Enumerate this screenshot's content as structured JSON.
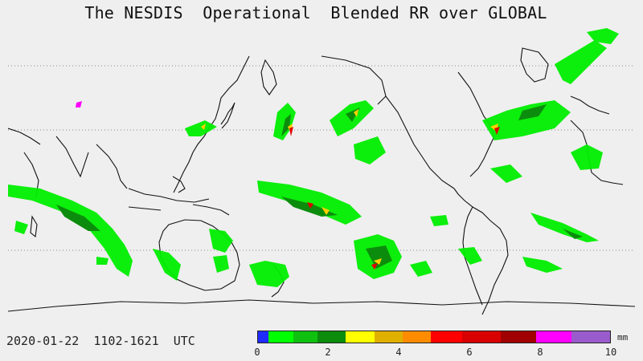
{
  "title": "The NESDIS  Operational  Blended RR over GLOBAL",
  "date_range": "2020-01-22  1102-1621  UTC",
  "colorbar": {
    "unit": "mm",
    "min": 0,
    "max": 10,
    "tick_labels": [
      "0",
      "2",
      "4",
      "6",
      "8",
      "10"
    ],
    "bins": [
      {
        "from": 0.0,
        "to": 0.3,
        "color": "#1f2bff"
      },
      {
        "from": 0.3,
        "to": 1.0,
        "color": "#00ff00"
      },
      {
        "from": 1.0,
        "to": 1.7,
        "color": "#10c010"
      },
      {
        "from": 1.7,
        "to": 2.5,
        "color": "#0c8c0c"
      },
      {
        "from": 2.5,
        "to": 3.3,
        "color": "#ffff00"
      },
      {
        "from": 3.3,
        "to": 4.1,
        "color": "#e0b000"
      },
      {
        "from": 4.1,
        "to": 4.9,
        "color": "#ff8c00"
      },
      {
        "from": 4.9,
        "to": 5.8,
        "color": "#ff0000"
      },
      {
        "from": 5.8,
        "to": 6.9,
        "color": "#d80000"
      },
      {
        "from": 6.9,
        "to": 7.9,
        "color": "#a00000"
      },
      {
        "from": 7.9,
        "to": 8.9,
        "color": "#ff00ff"
      },
      {
        "from": 8.9,
        "to": 10.0,
        "color": "#9a5ccc"
      }
    ]
  },
  "map": {
    "projection": "cylindrical",
    "center_longitude": 180,
    "gridlines": "dotted latitude lines"
  }
}
